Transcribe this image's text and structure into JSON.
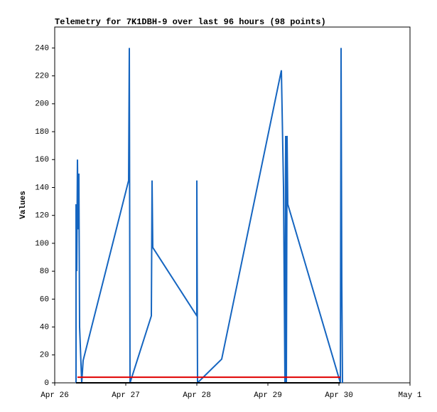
{
  "chart_data": {
    "type": "line",
    "title": "Telemetry for 7K1DBH-9 over last 96 hours (98 points)",
    "y_label": "Values",
    "xlim": [
      26,
      31
    ],
    "xticks": [
      {
        "value": 26,
        "label": "Apr 26"
      },
      {
        "value": 27,
        "label": "Apr 27"
      },
      {
        "value": 28,
        "label": "Apr 28"
      },
      {
        "value": 29,
        "label": "Apr 29"
      },
      {
        "value": 30,
        "label": "Apr 30"
      },
      {
        "value": 31,
        "label": "May 1"
      }
    ],
    "ylim": [
      0,
      255
    ],
    "yticks": [
      0,
      20,
      40,
      60,
      80,
      100,
      120,
      140,
      160,
      180,
      200,
      220,
      240
    ],
    "grid": false,
    "series": [
      {
        "color": "#1565c0",
        "x": [
          26.3,
          26.3,
          26.31,
          26.32,
          26.33,
          26.34,
          26.35,
          26.38,
          26.4,
          27.04,
          27.05,
          27.06,
          27.36,
          27.37,
          27.38,
          28.0,
          28.0,
          28.01,
          28.35,
          29.19,
          29.22,
          29.24,
          29.25,
          29.26,
          29.27,
          29.28,
          30.02,
          30.03,
          30.04,
          30.05
        ],
        "values": [
          0,
          128,
          80,
          160,
          110,
          150,
          40,
          0,
          16,
          145,
          240,
          0,
          48,
          145,
          97,
          48,
          145,
          0,
          17,
          224,
          140,
          0,
          177,
          0,
          177,
          128,
          0,
          240,
          72,
          0
        ]
      },
      {
        "color": "#e00000",
        "x": [
          26.32,
          30.02
        ],
        "values": [
          4,
          4
        ]
      },
      {
        "color": "#000000",
        "x": [
          26.3,
          30.02
        ],
        "values": [
          0,
          0
        ]
      }
    ]
  }
}
